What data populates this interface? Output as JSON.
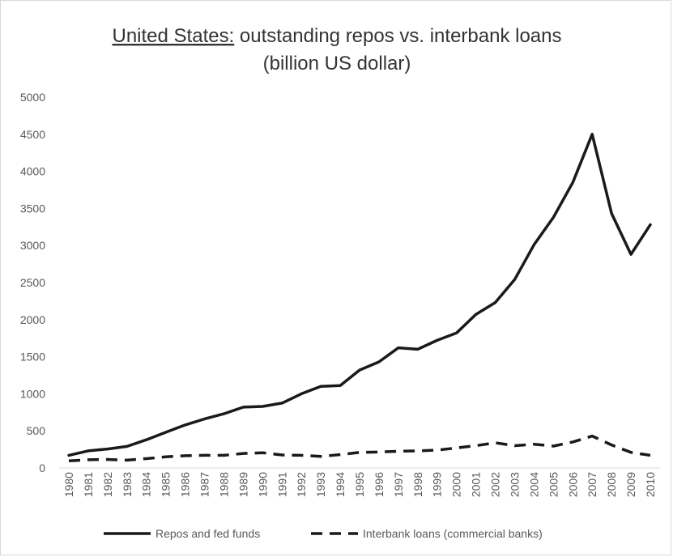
{
  "chart_data": {
    "type": "line",
    "title": {
      "country": "United States:",
      "rest": " outstanding repos vs. interbank loans",
      "line2": "(billion US dollar)"
    },
    "xlabel": "",
    "ylabel": "",
    "ylim": [
      0,
      5000
    ],
    "yticks": [
      "0",
      "500",
      "1000",
      "1500",
      "2000",
      "2500",
      "3000",
      "3500",
      "4000",
      "4500",
      "5000"
    ],
    "grid": false,
    "legend_position": "bottom",
    "categories": [
      "1980",
      "1981",
      "1982",
      "1983",
      "1984",
      "1985",
      "1986",
      "1987",
      "1988",
      "1989",
      "1990",
      "1991",
      "1992",
      "1993",
      "1994",
      "1995",
      "1996",
      "1997",
      "1998",
      "1999",
      "2000",
      "2001",
      "2002",
      "2003",
      "2004",
      "2005",
      "2006",
      "2007",
      "2008",
      "2009",
      "2010"
    ],
    "series": [
      {
        "name": "Repos and fed funds",
        "style": "solid",
        "color": "#1a1a1a",
        "values": [
          170,
          230,
          255,
          290,
          380,
          480,
          580,
          660,
          730,
          820,
          830,
          875,
          1000,
          1100,
          1110,
          1320,
          1430,
          1620,
          1600,
          1720,
          1820,
          2070,
          2230,
          2540,
          3010,
          3380,
          3850,
          4500,
          3430,
          2880,
          3280
        ]
      },
      {
        "name": "Interbank loans (commercial banks)",
        "style": "dashed",
        "color": "#1a1a1a",
        "values": [
          95,
          110,
          115,
          105,
          125,
          150,
          165,
          170,
          170,
          195,
          205,
          175,
          170,
          155,
          180,
          210,
          215,
          225,
          230,
          240,
          270,
          300,
          340,
          300,
          320,
          295,
          350,
          430,
          310,
          210,
          170
        ]
      }
    ]
  }
}
